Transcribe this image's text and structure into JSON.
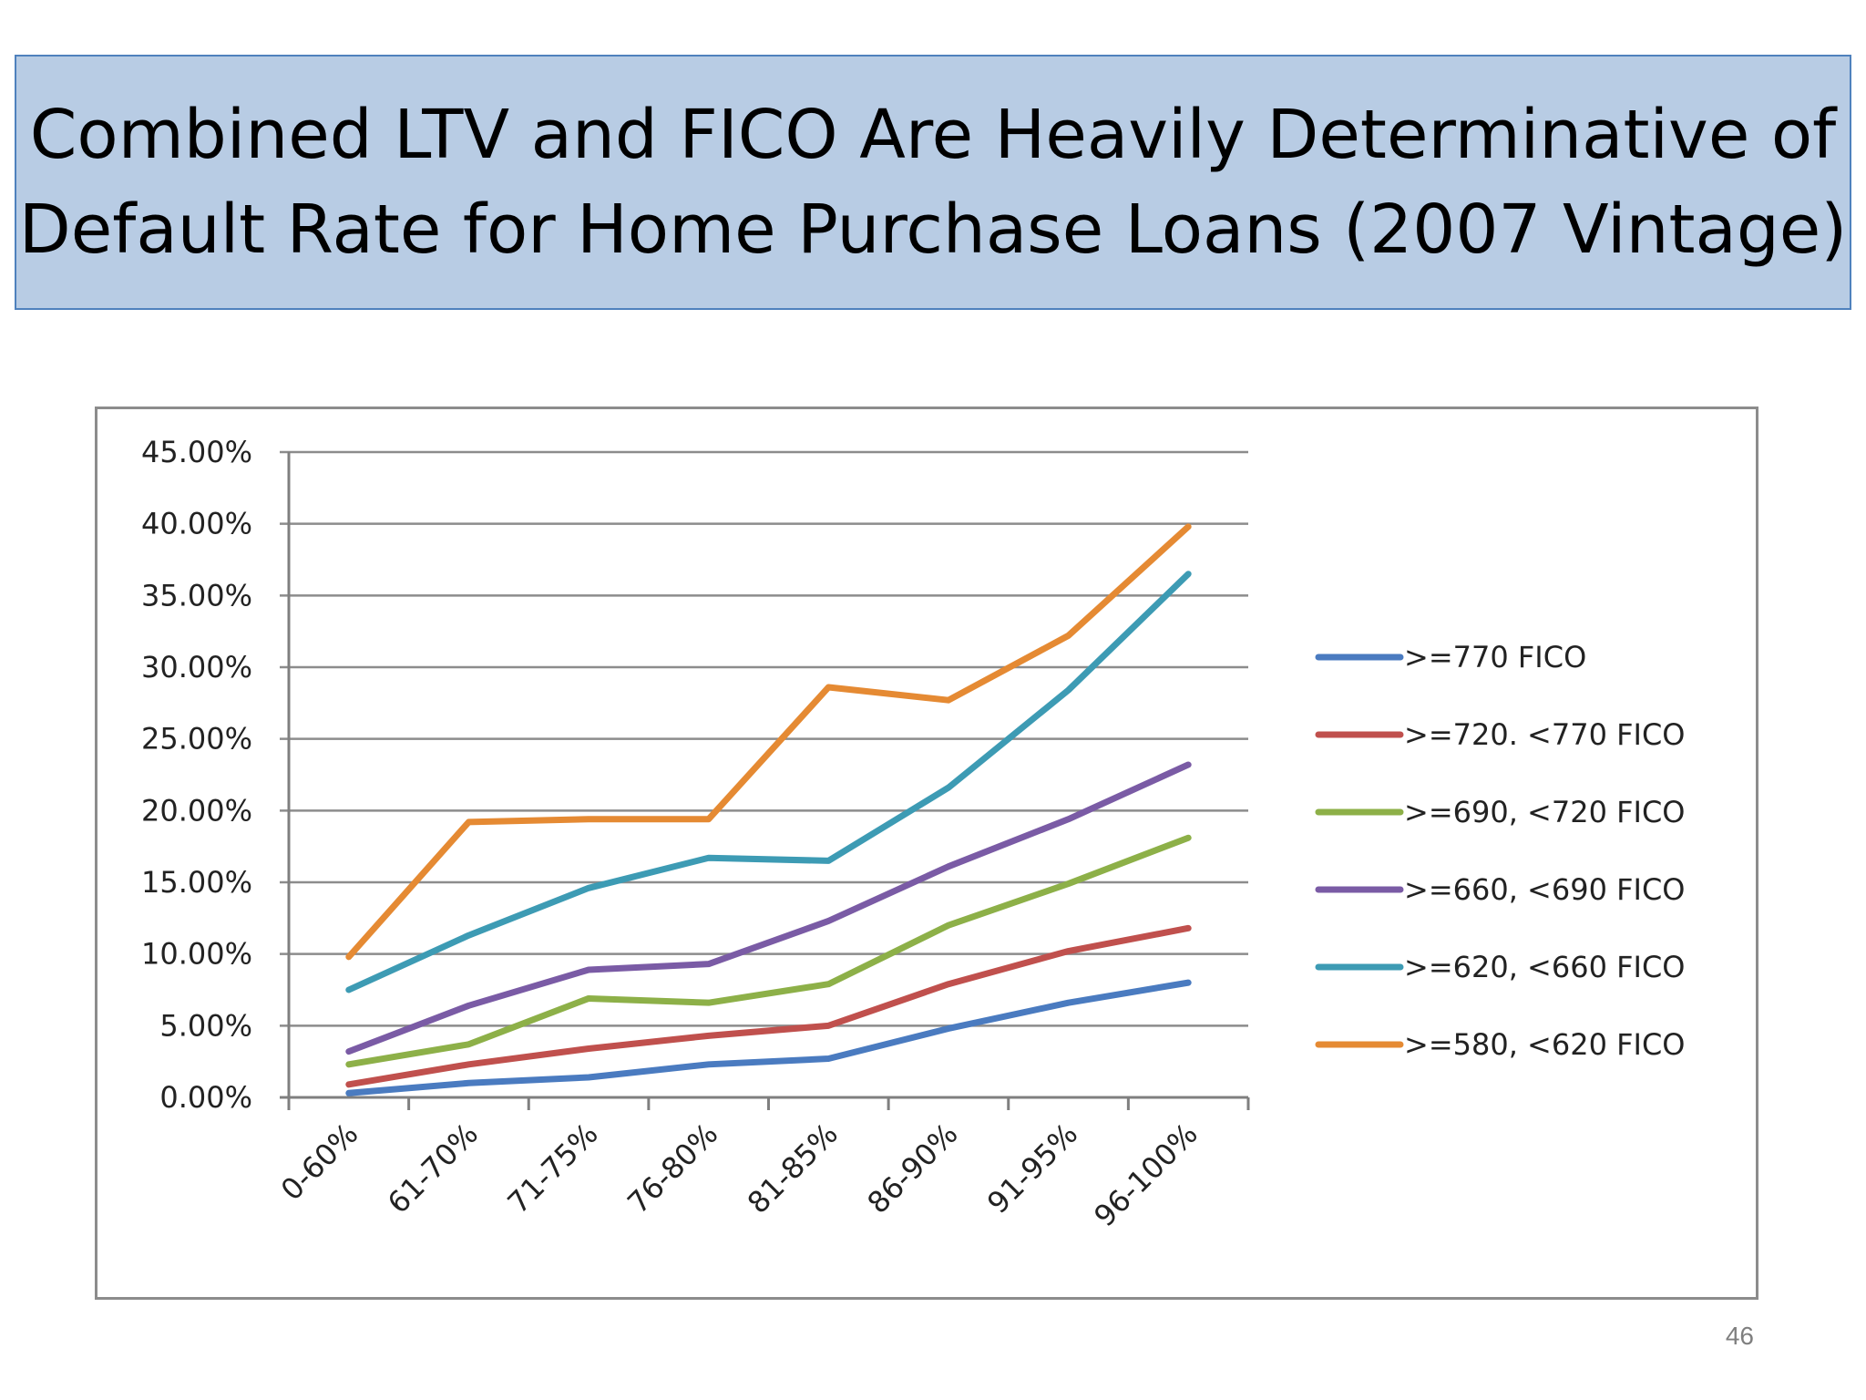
{
  "slide": {
    "title_lines": [
      "Combined LTV and FICO Are Heavily Determinative of",
      "Default Rate for Home Purchase Loans (2007 Vintage)"
    ],
    "page_number": "46"
  },
  "chart_data": {
    "type": "line",
    "title": "",
    "xlabel": "",
    "ylabel": "",
    "categories": [
      "0-60%",
      "61-70%",
      "71-75%",
      "76-80%",
      "81-85%",
      "86-90%",
      "91-95%",
      "96-100%"
    ],
    "ylim": [
      0,
      45
    ],
    "yticks": [
      0,
      5,
      10,
      15,
      20,
      25,
      30,
      35,
      40,
      45
    ],
    "ytick_labels": [
      "0.00%",
      "5.00%",
      "10.00%",
      "15.00%",
      "20.00%",
      "25.00%",
      "30.00%",
      "35.00%",
      "40.00%",
      "45.00%"
    ],
    "grid": true,
    "legend_position": "right",
    "series": [
      {
        "name": ">=770 FICO",
        "color": "#4a7bc0",
        "values": [
          0.3,
          1.0,
          1.4,
          2.3,
          2.7,
          4.8,
          6.6,
          8.0
        ]
      },
      {
        "name": ">=720. <770 FICO",
        "color": "#c0504d",
        "values": [
          0.9,
          2.3,
          3.4,
          4.3,
          5.0,
          7.9,
          10.2,
          11.8
        ]
      },
      {
        "name": ">=690, <720 FICO",
        "color": "#8db048",
        "values": [
          2.3,
          3.7,
          6.9,
          6.6,
          7.9,
          12.0,
          14.9,
          18.1
        ]
      },
      {
        "name": ">=660, <690 FICO",
        "color": "#7a5ba5",
        "values": [
          3.2,
          6.4,
          8.9,
          9.3,
          12.3,
          16.1,
          19.4,
          23.2
        ]
      },
      {
        "name": ">=620, <660 FICO",
        "color": "#3d9bb4",
        "values": [
          7.5,
          11.3,
          14.6,
          16.7,
          16.5,
          21.6,
          28.4,
          36.5
        ]
      },
      {
        "name": ">=580, <620 FICO",
        "color": "#e58a33",
        "values": [
          9.8,
          19.2,
          19.4,
          19.4,
          28.6,
          27.7,
          32.2,
          39.8
        ]
      }
    ]
  }
}
